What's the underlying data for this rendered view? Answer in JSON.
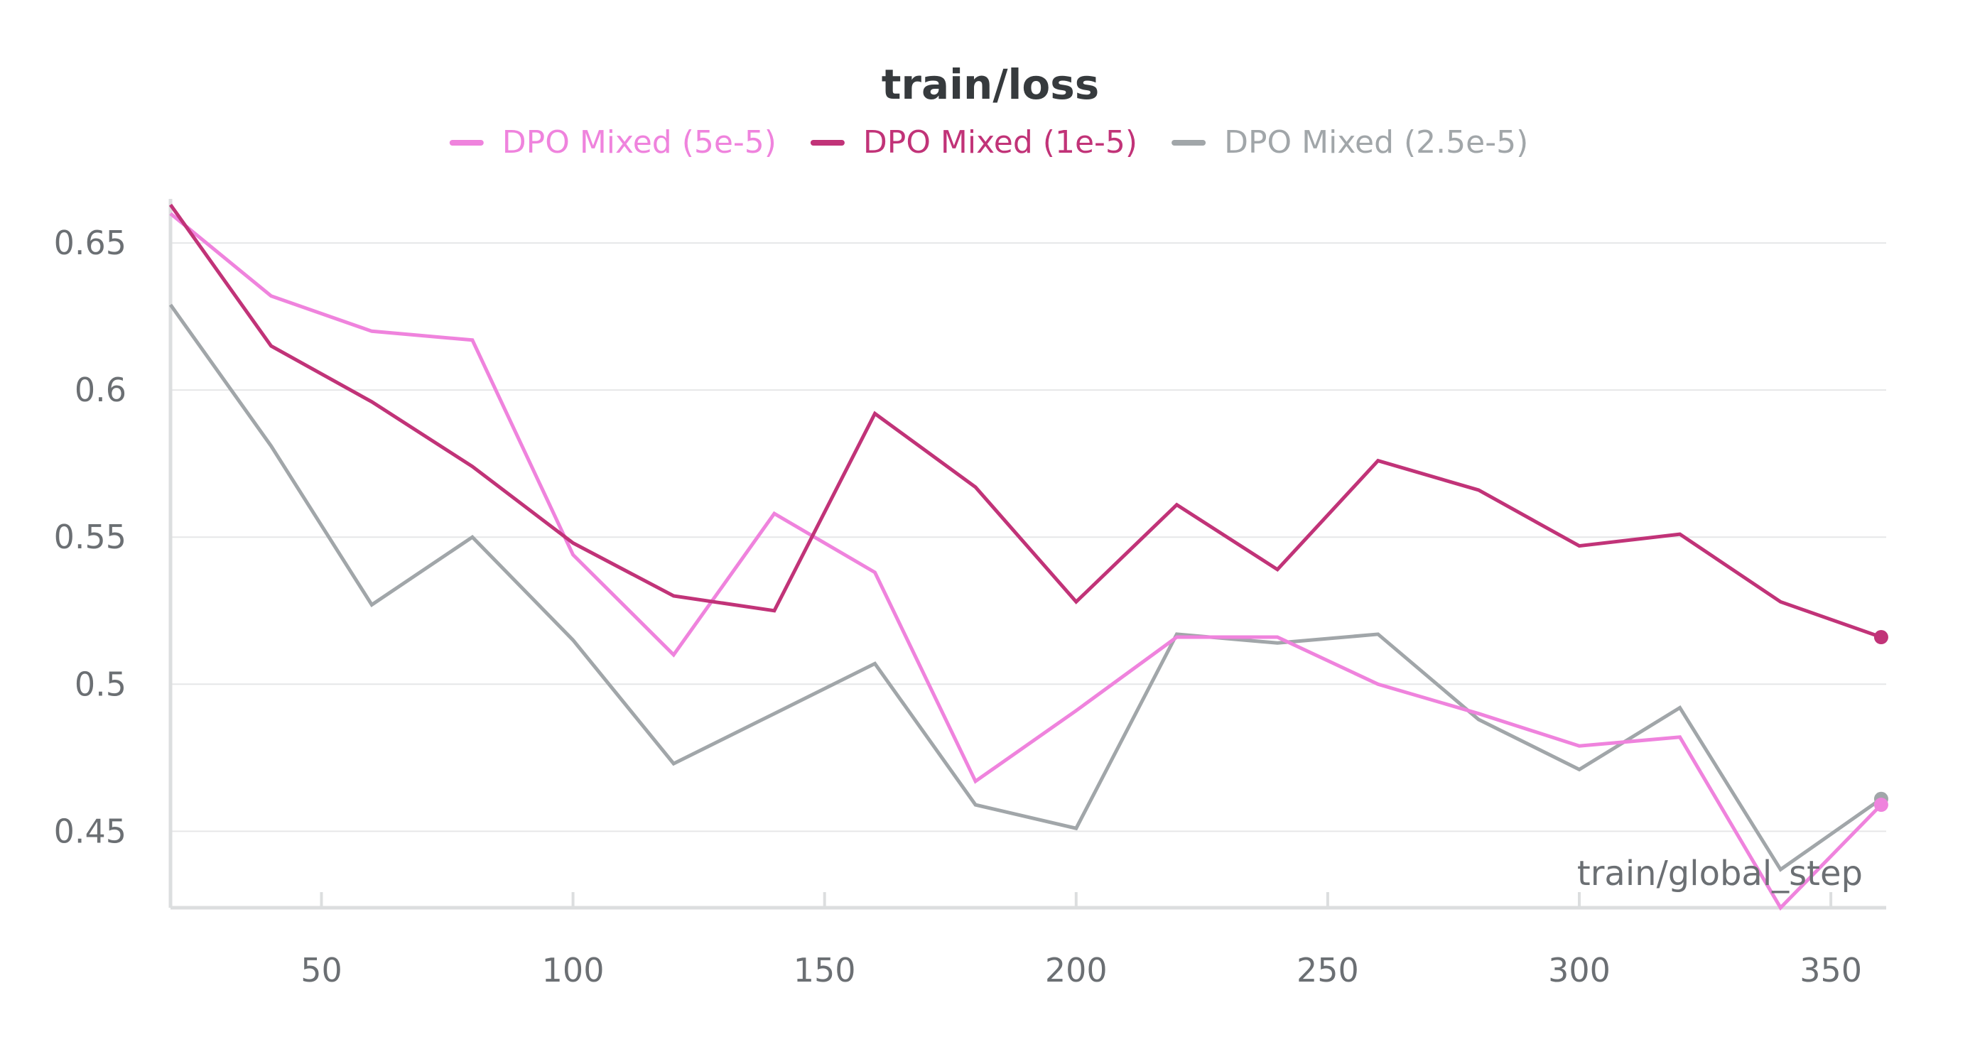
{
  "chart_data": {
    "type": "line",
    "title": "train/loss",
    "xlabel": "train/global_step",
    "ylabel": "",
    "xlim": [
      20,
      361
    ],
    "ylim": [
      0.424,
      0.665
    ],
    "xticks": [
      50,
      100,
      150,
      200,
      250,
      300,
      350
    ],
    "xtick_labels": [
      "50",
      "100",
      "150",
      "200",
      "250",
      "300",
      "350"
    ],
    "yticks": [
      0.45,
      0.5,
      0.55,
      0.6,
      0.65
    ],
    "ytick_labels": [
      "0.45",
      "0.5",
      "0.55",
      "0.6",
      "0.65"
    ],
    "grid": true,
    "legend_position": "top-center",
    "x": [
      20,
      40,
      60,
      80,
      100,
      120,
      140,
      160,
      180,
      200,
      220,
      240,
      260,
      280,
      300,
      320,
      340,
      360
    ],
    "series": [
      {
        "name": "DPO Mixed (5e-5)",
        "color": "#ef83dd",
        "values": [
          0.66,
          0.632,
          0.62,
          0.617,
          0.544,
          0.51,
          0.558,
          0.538,
          0.467,
          0.491,
          0.516,
          0.516,
          0.5,
          0.49,
          0.479,
          0.482,
          0.424,
          0.459
        ]
      },
      {
        "name": "DPO Mixed (1e-5)",
        "color": "#c13378",
        "values": [
          0.663,
          0.615,
          0.596,
          0.574,
          0.548,
          0.53,
          0.525,
          0.592,
          0.567,
          0.528,
          0.561,
          0.539,
          0.576,
          0.566,
          0.547,
          0.551,
          0.528,
          0.516
        ]
      },
      {
        "name": "DPO Mixed (2.5e-5)",
        "color": "#a1a6a9",
        "values": [
          0.629,
          0.581,
          0.527,
          0.55,
          0.515,
          0.473,
          0.49,
          0.507,
          0.459,
          0.451,
          0.517,
          0.514,
          0.517,
          0.488,
          0.471,
          0.492,
          0.437,
          0.461
        ]
      }
    ]
  }
}
